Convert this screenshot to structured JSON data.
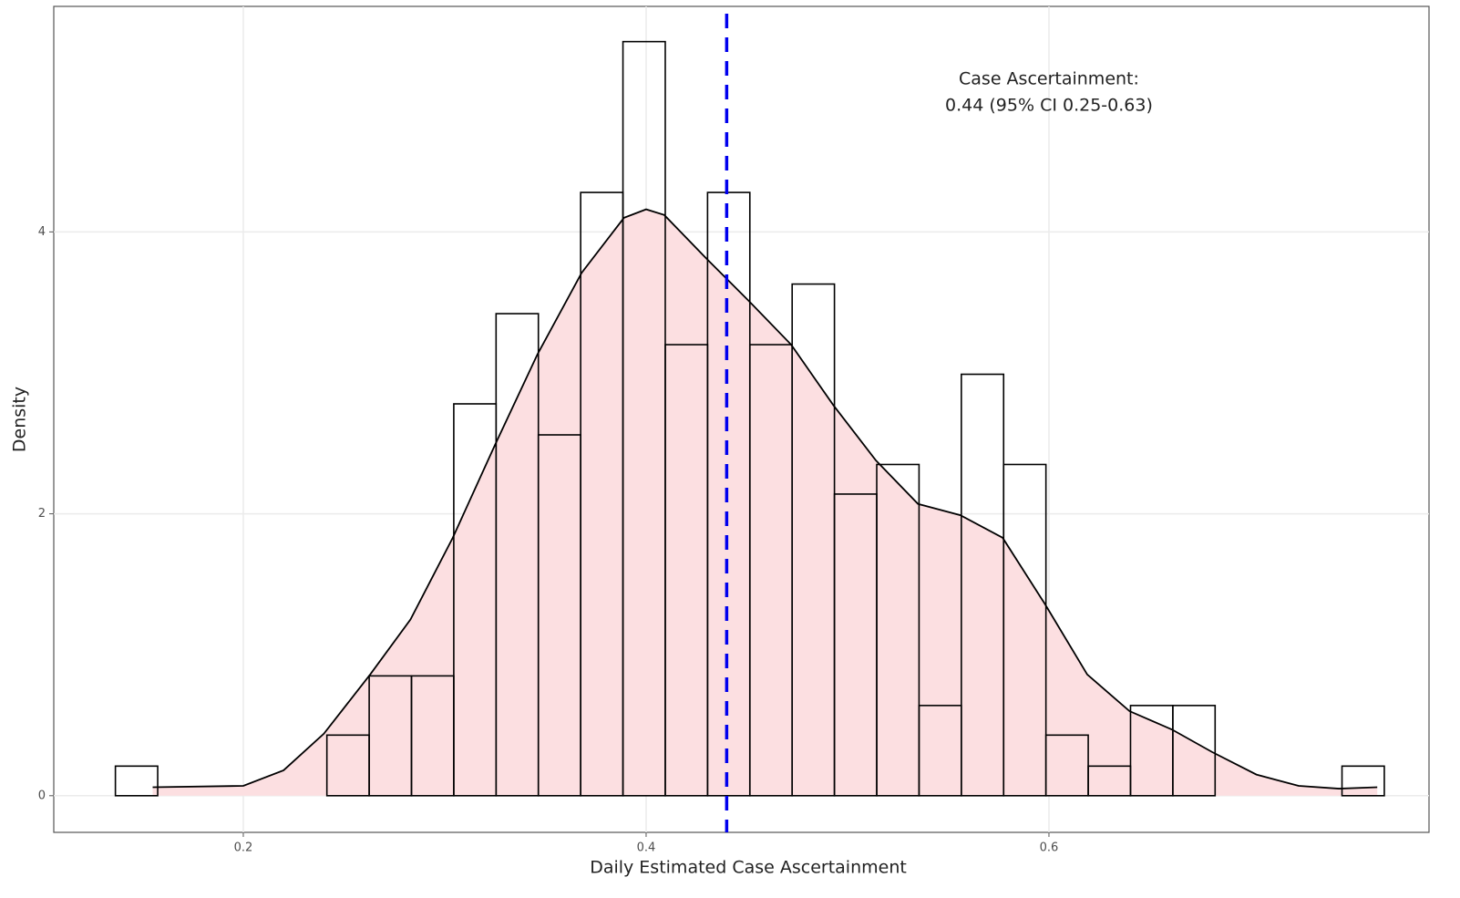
{
  "chart_data": {
    "type": "histogram",
    "xlabel": "Daily Estimated Case Ascertainment",
    "ylabel": "Density",
    "bins": [
      0.1365,
      0.1575,
      0.1785,
      0.1995,
      0.2205,
      0.2415,
      0.2625,
      0.2835,
      0.3045,
      0.3255,
      0.3465,
      0.3675,
      0.3885,
      0.4095,
      0.4305,
      0.4515,
      0.4725,
      0.4935,
      0.5145,
      0.5355,
      0.5565,
      0.5775,
      0.5985,
      0.6195,
      0.6405,
      0.6615,
      0.6825,
      0.7035,
      0.7245,
      0.7455,
      0.7665
    ],
    "values": [
      0.21,
      0,
      0,
      0,
      0,
      0.43,
      0.85,
      0.85,
      2.78,
      3.42,
      2.56,
      4.28,
      5.35,
      3.2,
      4.28,
      3.2,
      3.63,
      2.14,
      2.35,
      0.64,
      2.99,
      2.35,
      0.43,
      0.21,
      0.64,
      0.64,
      0,
      0,
      0,
      0.21
    ],
    "edge_color": "#000000",
    "density": {
      "x": [
        0.155,
        0.2,
        0.22,
        0.24,
        0.263,
        0.283,
        0.304,
        0.325,
        0.346,
        0.368,
        0.389,
        0.4,
        0.409,
        0.43,
        0.451,
        0.472,
        0.493,
        0.514,
        0.535,
        0.556,
        0.577,
        0.598,
        0.619,
        0.64,
        0.661,
        0.681,
        0.703,
        0.724,
        0.744,
        0.763
      ],
      "y": [
        0.06,
        0.07,
        0.18,
        0.44,
        0.86,
        1.25,
        1.83,
        2.49,
        3.13,
        3.71,
        4.1,
        4.16,
        4.12,
        3.81,
        3.51,
        3.2,
        2.77,
        2.38,
        2.07,
        1.99,
        1.83,
        1.36,
        0.86,
        0.6,
        0.47,
        0.31,
        0.15,
        0.07,
        0.05,
        0.06
      ],
      "fill": "#fcdfe1",
      "color": "#000000"
    },
    "vline": {
      "value": 0.44,
      "color": "#0000ee"
    },
    "annotation": [
      "Case Ascertainment:",
      "0.44 (95% CI 0.25-0.63)"
    ],
    "annotation_x": 0.6,
    "xlim": [
      0.1059,
      0.7887
    ],
    "ylim": [
      -0.26,
      5.6
    ],
    "xticks": [
      0.2,
      0.4,
      0.6
    ],
    "yticks": [
      0,
      2,
      4
    ],
    "grid": true
  }
}
